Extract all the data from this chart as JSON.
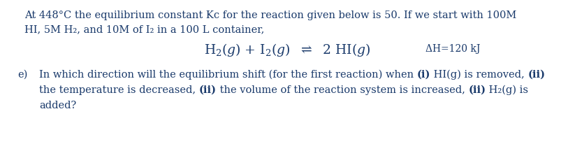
{
  "background_color": "#ffffff",
  "text_color": "#1a3a6b",
  "font_size_body": 10.5,
  "font_size_equation": 13.5,
  "font_size_dh": 10.0,
  "figwidth": 8.23,
  "figheight": 2.07,
  "dpi": 100,
  "line1": "At 448°C the equilibrium constant Kc for the reaction given below is 50. If we start with 100M",
  "line2": "HI, 5M H₂, and 10M of I₂ in a 100 L container,",
  "dh_label": "ΔH=120 kJ",
  "question_label": "e)",
  "q1_pre": "In which direction will the equilibrium shift (for the first reaction) when ",
  "q1_b1": "(i)",
  "q1_mid": " HI(g) is removed, ",
  "q1_b2": "(ii)",
  "q2_pre": "the temperature is decreased, ",
  "q2_b3": "(ii)",
  "q2_mid": " the volume of the reaction system is increased, ",
  "q2_b4": "(ii)",
  "q2_post": " H₂(g) is",
  "q3": "added?"
}
